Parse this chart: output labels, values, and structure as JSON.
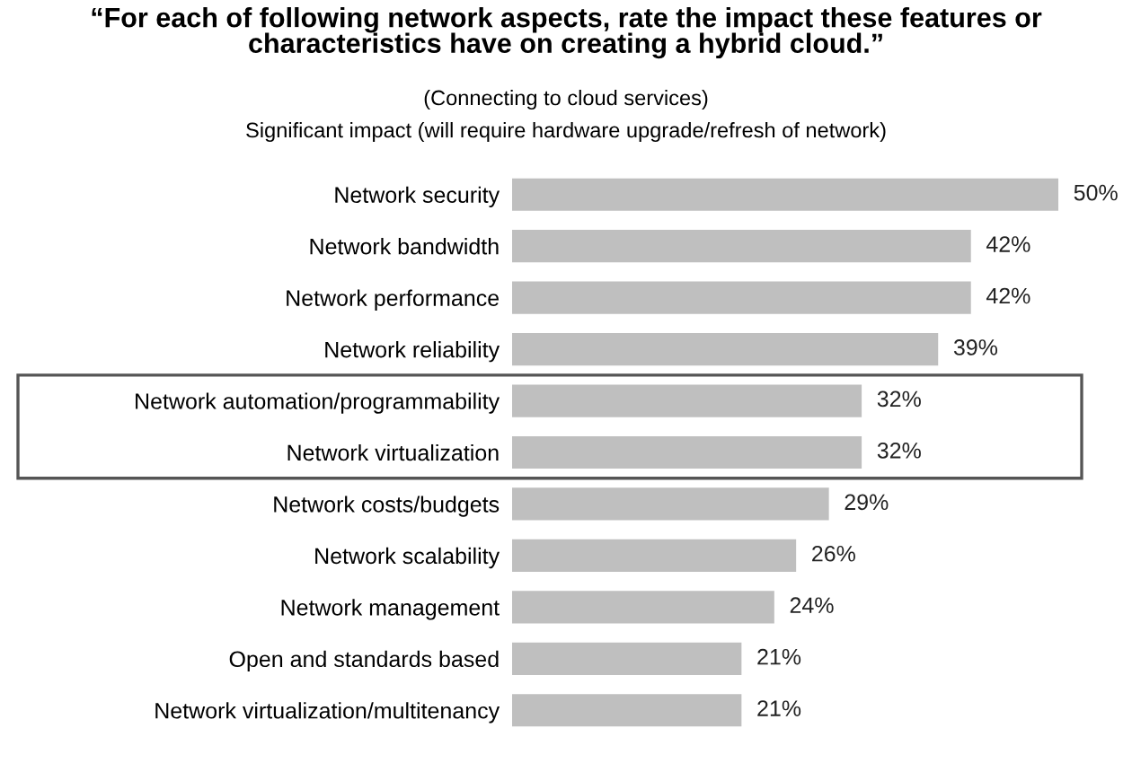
{
  "chart_data": {
    "type": "bar",
    "orientation": "horizontal",
    "title": "“For each of following network aspects, rate the impact these features or\ncharacteristics have on creating a hybrid cloud.”",
    "subtitle": "(Connecting to cloud services)",
    "annotations": [
      "Significant impact (will require hardware upgrade/refresh of network)"
    ],
    "categories": [
      "Network security",
      "Network bandwidth",
      "Network performance",
      "Network reliability",
      "Network automation/programmability",
      "Network virtualization",
      "Network costs/budgets",
      "Network scalability",
      "Network management",
      "Open and standards based",
      "Network virtualization/multitenancy"
    ],
    "values": [
      50,
      42,
      42,
      39,
      32,
      32,
      29,
      26,
      24,
      21,
      21
    ],
    "value_labels": [
      "50%",
      "42%",
      "42%",
      "39%",
      "32%",
      "32%",
      "29%",
      "26%",
      "24%",
      "21%",
      "21%"
    ],
    "color": "#bfbfbf",
    "xlim": [
      0,
      50
    ],
    "tick_labels": "y",
    "grid": false,
    "legend": false
  }
}
